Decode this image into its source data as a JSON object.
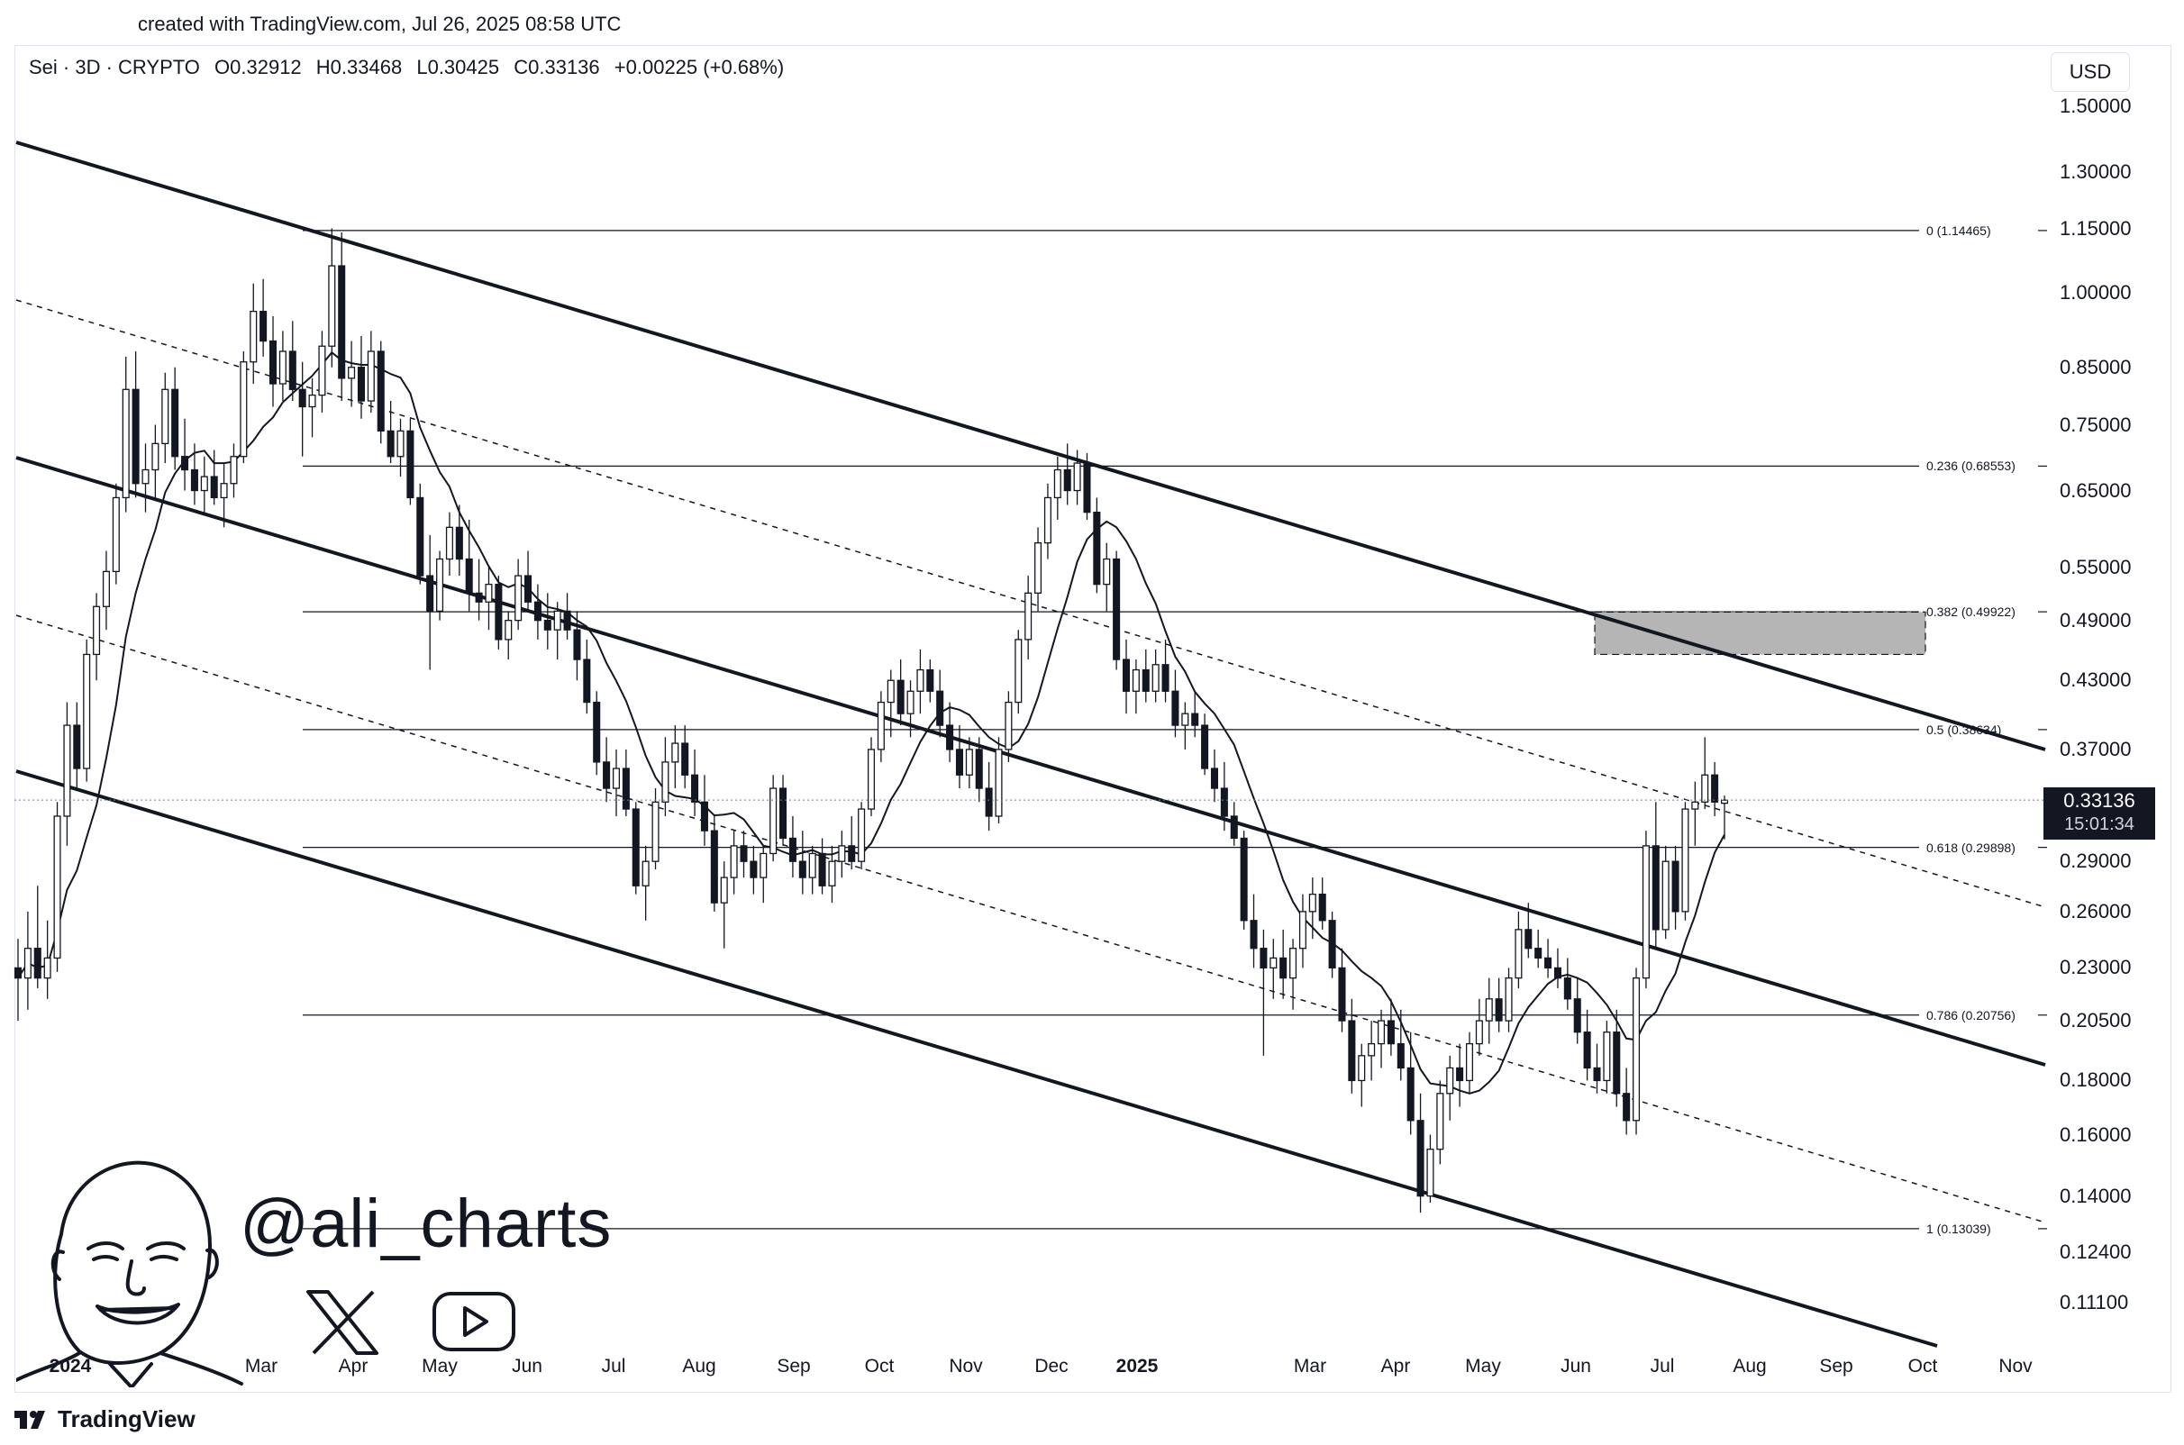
{
  "watermark": "created with TradingView.com, Jul 26, 2025 08:58 UTC",
  "header": {
    "symbol": "Sei · 3D · CRYPTO",
    "open": "O0.32912",
    "high": "H0.33468",
    "low": "L0.30425",
    "close": "C0.33136",
    "change": "+0.00225 (+0.68%)"
  },
  "currency_button": "USD",
  "last_price": {
    "value": "0.33136",
    "countdown": "15:01:34"
  },
  "footer_brand": "TradingView",
  "author_handle": "@ali_charts",
  "icons": {
    "x": "x-logo-icon",
    "youtube": "youtube-icon",
    "tradingview": "tradingview-logo-icon"
  },
  "colors": {
    "candle_up": "#ffffff",
    "candle_down": "#131722",
    "zone": "#b5b5b5",
    "text": "#131722"
  },
  "chart_data": {
    "type": "candlestick",
    "symbol": "Sei",
    "interval": "3D",
    "scale": "log",
    "price_axis": [
      "1.50000",
      "1.30000",
      "1.15000",
      "1.00000",
      "0.85000",
      "0.75000",
      "0.65000",
      "0.55000",
      "0.49000",
      "0.43000",
      "0.37000",
      "0.29000",
      "0.26000",
      "0.23000",
      "0.20500",
      "0.18000",
      "0.16000",
      "0.14000",
      "0.12400",
      "0.11100"
    ],
    "time_axis": [
      {
        "label": "2024",
        "bold": true
      },
      {
        "label": "Mar"
      },
      {
        "label": "Apr"
      },
      {
        "label": "May"
      },
      {
        "label": "Jun"
      },
      {
        "label": "Jul"
      },
      {
        "label": "Aug"
      },
      {
        "label": "Sep"
      },
      {
        "label": "Oct"
      },
      {
        "label": "Nov"
      },
      {
        "label": "Dec"
      },
      {
        "label": "2025",
        "bold": true
      },
      {
        "label": "Mar"
      },
      {
        "label": "Apr"
      },
      {
        "label": "May"
      },
      {
        "label": "Jun"
      },
      {
        "label": "Jul"
      },
      {
        "label": "Aug"
      },
      {
        "label": "Sep"
      },
      {
        "label": "Oct"
      },
      {
        "label": "Nov"
      }
    ],
    "fib_levels": [
      {
        "label": "0 (1.14465)",
        "price": 1.14465
      },
      {
        "label": "0.236 (0.68553)",
        "price": 0.68553
      },
      {
        "label": "0.382 (0.49922)",
        "price": 0.49922
      },
      {
        "label": "0.5 (0.38634)",
        "price": 0.38634
      },
      {
        "label": "0.618 (0.29898)",
        "price": 0.29898
      },
      {
        "label": "0.786 (0.20756)",
        "price": 0.20756
      },
      {
        "label": "1 (0.13039)",
        "price": 0.13039
      }
    ],
    "resistance_zone": {
      "price_high": 0.499,
      "price_low": 0.455,
      "from": "Jun 2025",
      "to": "Aug 2025"
    },
    "channel": "descending parallel channel with dashed midlines",
    "moving_average": "single thin line",
    "candles": [
      {
        "o": 0.23,
        "h": 0.245,
        "l": 0.205,
        "c": 0.225
      },
      {
        "o": 0.225,
        "h": 0.26,
        "l": 0.21,
        "c": 0.24
      },
      {
        "o": 0.24,
        "h": 0.275,
        "l": 0.22,
        "c": 0.225
      },
      {
        "o": 0.225,
        "h": 0.255,
        "l": 0.215,
        "c": 0.235
      },
      {
        "o": 0.235,
        "h": 0.33,
        "l": 0.228,
        "c": 0.32
      },
      {
        "o": 0.32,
        "h": 0.41,
        "l": 0.3,
        "c": 0.39
      },
      {
        "o": 0.39,
        "h": 0.41,
        "l": 0.34,
        "c": 0.355
      },
      {
        "o": 0.355,
        "h": 0.47,
        "l": 0.345,
        "c": 0.455
      },
      {
        "o": 0.455,
        "h": 0.52,
        "l": 0.43,
        "c": 0.505
      },
      {
        "o": 0.505,
        "h": 0.57,
        "l": 0.48,
        "c": 0.545
      },
      {
        "o": 0.545,
        "h": 0.66,
        "l": 0.53,
        "c": 0.64
      },
      {
        "o": 0.64,
        "h": 0.87,
        "l": 0.62,
        "c": 0.81
      },
      {
        "o": 0.81,
        "h": 0.88,
        "l": 0.64,
        "c": 0.66
      },
      {
        "o": 0.66,
        "h": 0.72,
        "l": 0.62,
        "c": 0.68
      },
      {
        "o": 0.68,
        "h": 0.75,
        "l": 0.64,
        "c": 0.72
      },
      {
        "o": 0.72,
        "h": 0.84,
        "l": 0.69,
        "c": 0.81
      },
      {
        "o": 0.81,
        "h": 0.85,
        "l": 0.68,
        "c": 0.7
      },
      {
        "o": 0.7,
        "h": 0.76,
        "l": 0.65,
        "c": 0.68
      },
      {
        "o": 0.68,
        "h": 0.72,
        "l": 0.63,
        "c": 0.65
      },
      {
        "o": 0.65,
        "h": 0.7,
        "l": 0.62,
        "c": 0.67
      },
      {
        "o": 0.67,
        "h": 0.71,
        "l": 0.63,
        "c": 0.64
      },
      {
        "o": 0.64,
        "h": 0.69,
        "l": 0.6,
        "c": 0.66
      },
      {
        "o": 0.66,
        "h": 0.72,
        "l": 0.64,
        "c": 0.7
      },
      {
        "o": 0.7,
        "h": 0.88,
        "l": 0.69,
        "c": 0.86
      },
      {
        "o": 0.86,
        "h": 1.02,
        "l": 0.82,
        "c": 0.96
      },
      {
        "o": 0.96,
        "h": 1.03,
        "l": 0.87,
        "c": 0.9
      },
      {
        "o": 0.9,
        "h": 0.95,
        "l": 0.78,
        "c": 0.82
      },
      {
        "o": 0.82,
        "h": 0.92,
        "l": 0.79,
        "c": 0.88
      },
      {
        "o": 0.88,
        "h": 0.94,
        "l": 0.79,
        "c": 0.81
      },
      {
        "o": 0.81,
        "h": 0.86,
        "l": 0.7,
        "c": 0.78
      },
      {
        "o": 0.78,
        "h": 0.83,
        "l": 0.73,
        "c": 0.8
      },
      {
        "o": 0.8,
        "h": 0.92,
        "l": 0.77,
        "c": 0.89
      },
      {
        "o": 0.89,
        "h": 1.15,
        "l": 0.85,
        "c": 1.06
      },
      {
        "o": 1.06,
        "h": 1.14,
        "l": 0.79,
        "c": 0.83
      },
      {
        "o": 0.83,
        "h": 0.9,
        "l": 0.78,
        "c": 0.85
      },
      {
        "o": 0.85,
        "h": 0.91,
        "l": 0.76,
        "c": 0.79
      },
      {
        "o": 0.79,
        "h": 0.92,
        "l": 0.77,
        "c": 0.88
      },
      {
        "o": 0.88,
        "h": 0.9,
        "l": 0.72,
        "c": 0.74
      },
      {
        "o": 0.74,
        "h": 0.79,
        "l": 0.69,
        "c": 0.7
      },
      {
        "o": 0.7,
        "h": 0.76,
        "l": 0.67,
        "c": 0.74
      },
      {
        "o": 0.74,
        "h": 0.76,
        "l": 0.63,
        "c": 0.64
      },
      {
        "o": 0.64,
        "h": 0.66,
        "l": 0.53,
        "c": 0.54
      },
      {
        "o": 0.54,
        "h": 0.59,
        "l": 0.44,
        "c": 0.5
      },
      {
        "o": 0.5,
        "h": 0.57,
        "l": 0.49,
        "c": 0.56
      },
      {
        "o": 0.56,
        "h": 0.62,
        "l": 0.54,
        "c": 0.6
      },
      {
        "o": 0.6,
        "h": 0.63,
        "l": 0.54,
        "c": 0.56
      },
      {
        "o": 0.56,
        "h": 0.61,
        "l": 0.5,
        "c": 0.52
      },
      {
        "o": 0.52,
        "h": 0.56,
        "l": 0.49,
        "c": 0.51
      },
      {
        "o": 0.51,
        "h": 0.55,
        "l": 0.48,
        "c": 0.53
      },
      {
        "o": 0.53,
        "h": 0.54,
        "l": 0.46,
        "c": 0.47
      },
      {
        "o": 0.47,
        "h": 0.5,
        "l": 0.45,
        "c": 0.49
      },
      {
        "o": 0.49,
        "h": 0.56,
        "l": 0.48,
        "c": 0.54
      },
      {
        "o": 0.54,
        "h": 0.57,
        "l": 0.5,
        "c": 0.51
      },
      {
        "o": 0.51,
        "h": 0.53,
        "l": 0.47,
        "c": 0.49
      },
      {
        "o": 0.49,
        "h": 0.52,
        "l": 0.46,
        "c": 0.48
      },
      {
        "o": 0.48,
        "h": 0.51,
        "l": 0.45,
        "c": 0.5
      },
      {
        "o": 0.5,
        "h": 0.52,
        "l": 0.47,
        "c": 0.48
      },
      {
        "o": 0.48,
        "h": 0.5,
        "l": 0.43,
        "c": 0.45
      },
      {
        "o": 0.45,
        "h": 0.47,
        "l": 0.4,
        "c": 0.41
      },
      {
        "o": 0.41,
        "h": 0.42,
        "l": 0.35,
        "c": 0.36
      },
      {
        "o": 0.36,
        "h": 0.38,
        "l": 0.33,
        "c": 0.34
      },
      {
        "o": 0.34,
        "h": 0.37,
        "l": 0.32,
        "c": 0.355
      },
      {
        "o": 0.355,
        "h": 0.37,
        "l": 0.32,
        "c": 0.325
      },
      {
        "o": 0.325,
        "h": 0.33,
        "l": 0.27,
        "c": 0.275
      },
      {
        "o": 0.275,
        "h": 0.3,
        "l": 0.255,
        "c": 0.29
      },
      {
        "o": 0.29,
        "h": 0.34,
        "l": 0.285,
        "c": 0.33
      },
      {
        "o": 0.33,
        "h": 0.38,
        "l": 0.32,
        "c": 0.36
      },
      {
        "o": 0.36,
        "h": 0.39,
        "l": 0.34,
        "c": 0.375
      },
      {
        "o": 0.375,
        "h": 0.39,
        "l": 0.34,
        "c": 0.35
      },
      {
        "o": 0.35,
        "h": 0.37,
        "l": 0.32,
        "c": 0.33
      },
      {
        "o": 0.33,
        "h": 0.35,
        "l": 0.3,
        "c": 0.31
      },
      {
        "o": 0.31,
        "h": 0.32,
        "l": 0.26,
        "c": 0.265
      },
      {
        "o": 0.265,
        "h": 0.29,
        "l": 0.24,
        "c": 0.28
      },
      {
        "o": 0.28,
        "h": 0.31,
        "l": 0.27,
        "c": 0.3
      },
      {
        "o": 0.3,
        "h": 0.31,
        "l": 0.28,
        "c": 0.29
      },
      {
        "o": 0.29,
        "h": 0.3,
        "l": 0.27,
        "c": 0.28
      },
      {
        "o": 0.28,
        "h": 0.3,
        "l": 0.265,
        "c": 0.295
      },
      {
        "o": 0.295,
        "h": 0.35,
        "l": 0.29,
        "c": 0.34
      },
      {
        "o": 0.34,
        "h": 0.35,
        "l": 0.3,
        "c": 0.305
      },
      {
        "o": 0.305,
        "h": 0.32,
        "l": 0.28,
        "c": 0.29
      },
      {
        "o": 0.29,
        "h": 0.31,
        "l": 0.27,
        "c": 0.28
      },
      {
        "o": 0.28,
        "h": 0.3,
        "l": 0.27,
        "c": 0.295
      },
      {
        "o": 0.295,
        "h": 0.305,
        "l": 0.27,
        "c": 0.275
      },
      {
        "o": 0.275,
        "h": 0.3,
        "l": 0.265,
        "c": 0.29
      },
      {
        "o": 0.29,
        "h": 0.31,
        "l": 0.28,
        "c": 0.3
      },
      {
        "o": 0.3,
        "h": 0.32,
        "l": 0.285,
        "c": 0.29
      },
      {
        "o": 0.29,
        "h": 0.33,
        "l": 0.285,
        "c": 0.325
      },
      {
        "o": 0.325,
        "h": 0.38,
        "l": 0.32,
        "c": 0.37
      },
      {
        "o": 0.37,
        "h": 0.42,
        "l": 0.36,
        "c": 0.41
      },
      {
        "o": 0.41,
        "h": 0.44,
        "l": 0.38,
        "c": 0.43
      },
      {
        "o": 0.43,
        "h": 0.45,
        "l": 0.39,
        "c": 0.4
      },
      {
        "o": 0.4,
        "h": 0.43,
        "l": 0.38,
        "c": 0.42
      },
      {
        "o": 0.42,
        "h": 0.46,
        "l": 0.4,
        "c": 0.44
      },
      {
        "o": 0.44,
        "h": 0.45,
        "l": 0.41,
        "c": 0.42
      },
      {
        "o": 0.42,
        "h": 0.44,
        "l": 0.38,
        "c": 0.39
      },
      {
        "o": 0.39,
        "h": 0.41,
        "l": 0.36,
        "c": 0.37
      },
      {
        "o": 0.37,
        "h": 0.39,
        "l": 0.34,
        "c": 0.35
      },
      {
        "o": 0.35,
        "h": 0.38,
        "l": 0.34,
        "c": 0.37
      },
      {
        "o": 0.37,
        "h": 0.38,
        "l": 0.33,
        "c": 0.34
      },
      {
        "o": 0.34,
        "h": 0.36,
        "l": 0.31,
        "c": 0.32
      },
      {
        "o": 0.32,
        "h": 0.38,
        "l": 0.315,
        "c": 0.37
      },
      {
        "o": 0.37,
        "h": 0.42,
        "l": 0.36,
        "c": 0.41
      },
      {
        "o": 0.41,
        "h": 0.48,
        "l": 0.4,
        "c": 0.47
      },
      {
        "o": 0.47,
        "h": 0.54,
        "l": 0.45,
        "c": 0.52
      },
      {
        "o": 0.52,
        "h": 0.6,
        "l": 0.5,
        "c": 0.58
      },
      {
        "o": 0.58,
        "h": 0.66,
        "l": 0.56,
        "c": 0.64
      },
      {
        "o": 0.64,
        "h": 0.7,
        "l": 0.61,
        "c": 0.68
      },
      {
        "o": 0.68,
        "h": 0.72,
        "l": 0.63,
        "c": 0.65
      },
      {
        "o": 0.65,
        "h": 0.71,
        "l": 0.63,
        "c": 0.69
      },
      {
        "o": 0.69,
        "h": 0.705,
        "l": 0.61,
        "c": 0.62
      },
      {
        "o": 0.62,
        "h": 0.64,
        "l": 0.52,
        "c": 0.53
      },
      {
        "o": 0.53,
        "h": 0.58,
        "l": 0.5,
        "c": 0.56
      },
      {
        "o": 0.56,
        "h": 0.57,
        "l": 0.44,
        "c": 0.45
      },
      {
        "o": 0.45,
        "h": 0.47,
        "l": 0.4,
        "c": 0.42
      },
      {
        "o": 0.42,
        "h": 0.45,
        "l": 0.4,
        "c": 0.44
      },
      {
        "o": 0.44,
        "h": 0.46,
        "l": 0.41,
        "c": 0.42
      },
      {
        "o": 0.42,
        "h": 0.46,
        "l": 0.41,
        "c": 0.445
      },
      {
        "o": 0.445,
        "h": 0.47,
        "l": 0.41,
        "c": 0.42
      },
      {
        "o": 0.42,
        "h": 0.44,
        "l": 0.38,
        "c": 0.39
      },
      {
        "o": 0.39,
        "h": 0.41,
        "l": 0.37,
        "c": 0.4
      },
      {
        "o": 0.4,
        "h": 0.42,
        "l": 0.38,
        "c": 0.39
      },
      {
        "o": 0.39,
        "h": 0.4,
        "l": 0.35,
        "c": 0.355
      },
      {
        "o": 0.355,
        "h": 0.37,
        "l": 0.33,
        "c": 0.34
      },
      {
        "o": 0.34,
        "h": 0.36,
        "l": 0.31,
        "c": 0.32
      },
      {
        "o": 0.32,
        "h": 0.33,
        "l": 0.3,
        "c": 0.305
      },
      {
        "o": 0.305,
        "h": 0.31,
        "l": 0.25,
        "c": 0.255
      },
      {
        "o": 0.255,
        "h": 0.27,
        "l": 0.23,
        "c": 0.24
      },
      {
        "o": 0.24,
        "h": 0.25,
        "l": 0.19,
        "c": 0.23
      },
      {
        "o": 0.23,
        "h": 0.245,
        "l": 0.215,
        "c": 0.235
      },
      {
        "o": 0.235,
        "h": 0.25,
        "l": 0.215,
        "c": 0.225
      },
      {
        "o": 0.225,
        "h": 0.245,
        "l": 0.21,
        "c": 0.24
      },
      {
        "o": 0.24,
        "h": 0.27,
        "l": 0.23,
        "c": 0.26
      },
      {
        "o": 0.26,
        "h": 0.28,
        "l": 0.245,
        "c": 0.27
      },
      {
        "o": 0.27,
        "h": 0.28,
        "l": 0.25,
        "c": 0.255
      },
      {
        "o": 0.255,
        "h": 0.26,
        "l": 0.225,
        "c": 0.23
      },
      {
        "o": 0.23,
        "h": 0.24,
        "l": 0.2,
        "c": 0.205
      },
      {
        "o": 0.205,
        "h": 0.215,
        "l": 0.175,
        "c": 0.18
      },
      {
        "o": 0.18,
        "h": 0.195,
        "l": 0.17,
        "c": 0.19
      },
      {
        "o": 0.19,
        "h": 0.205,
        "l": 0.18,
        "c": 0.195
      },
      {
        "o": 0.195,
        "h": 0.21,
        "l": 0.185,
        "c": 0.205
      },
      {
        "o": 0.205,
        "h": 0.215,
        "l": 0.19,
        "c": 0.195
      },
      {
        "o": 0.195,
        "h": 0.21,
        "l": 0.18,
        "c": 0.185
      },
      {
        "o": 0.185,
        "h": 0.2,
        "l": 0.16,
        "c": 0.165
      },
      {
        "o": 0.165,
        "h": 0.175,
        "l": 0.135,
        "c": 0.14
      },
      {
        "o": 0.14,
        "h": 0.16,
        "l": 0.138,
        "c": 0.155
      },
      {
        "o": 0.155,
        "h": 0.18,
        "l": 0.15,
        "c": 0.175
      },
      {
        "o": 0.175,
        "h": 0.19,
        "l": 0.165,
        "c": 0.185
      },
      {
        "o": 0.185,
        "h": 0.195,
        "l": 0.17,
        "c": 0.18
      },
      {
        "o": 0.18,
        "h": 0.2,
        "l": 0.175,
        "c": 0.195
      },
      {
        "o": 0.195,
        "h": 0.215,
        "l": 0.19,
        "c": 0.205
      },
      {
        "o": 0.205,
        "h": 0.225,
        "l": 0.195,
        "c": 0.215
      },
      {
        "o": 0.215,
        "h": 0.225,
        "l": 0.2,
        "c": 0.205
      },
      {
        "o": 0.205,
        "h": 0.23,
        "l": 0.2,
        "c": 0.225
      },
      {
        "o": 0.225,
        "h": 0.26,
        "l": 0.22,
        "c": 0.25
      },
      {
        "o": 0.25,
        "h": 0.265,
        "l": 0.235,
        "c": 0.24
      },
      {
        "o": 0.24,
        "h": 0.25,
        "l": 0.23,
        "c": 0.235
      },
      {
        "o": 0.235,
        "h": 0.245,
        "l": 0.225,
        "c": 0.23
      },
      {
        "o": 0.23,
        "h": 0.24,
        "l": 0.22,
        "c": 0.225
      },
      {
        "o": 0.225,
        "h": 0.235,
        "l": 0.21,
        "c": 0.215
      },
      {
        "o": 0.215,
        "h": 0.225,
        "l": 0.195,
        "c": 0.2
      },
      {
        "o": 0.2,
        "h": 0.21,
        "l": 0.18,
        "c": 0.185
      },
      {
        "o": 0.185,
        "h": 0.195,
        "l": 0.175,
        "c": 0.18
      },
      {
        "o": 0.18,
        "h": 0.205,
        "l": 0.175,
        "c": 0.2
      },
      {
        "o": 0.2,
        "h": 0.21,
        "l": 0.17,
        "c": 0.175
      },
      {
        "o": 0.175,
        "h": 0.185,
        "l": 0.16,
        "c": 0.165
      },
      {
        "o": 0.165,
        "h": 0.23,
        "l": 0.16,
        "c": 0.225
      },
      {
        "o": 0.225,
        "h": 0.31,
        "l": 0.22,
        "c": 0.3
      },
      {
        "o": 0.3,
        "h": 0.33,
        "l": 0.24,
        "c": 0.25
      },
      {
        "o": 0.25,
        "h": 0.3,
        "l": 0.245,
        "c": 0.29
      },
      {
        "o": 0.29,
        "h": 0.3,
        "l": 0.25,
        "c": 0.26
      },
      {
        "o": 0.26,
        "h": 0.33,
        "l": 0.255,
        "c": 0.325
      },
      {
        "o": 0.325,
        "h": 0.345,
        "l": 0.3,
        "c": 0.33
      },
      {
        "o": 0.33,
        "h": 0.38,
        "l": 0.325,
        "c": 0.35
      },
      {
        "o": 0.35,
        "h": 0.36,
        "l": 0.32,
        "c": 0.33
      },
      {
        "o": 0.32912,
        "h": 0.33468,
        "l": 0.30425,
        "c": 0.33136
      }
    ]
  }
}
